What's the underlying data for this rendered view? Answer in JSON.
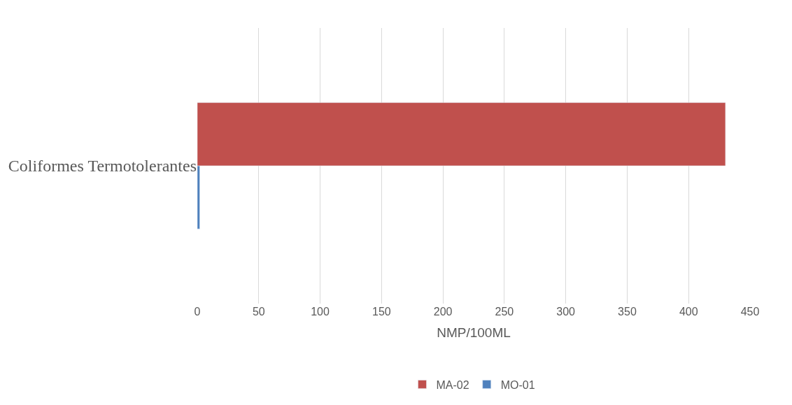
{
  "chart_data": {
    "type": "bar",
    "orientation": "horizontal",
    "categories": [
      "Coliformes Termotolerantes"
    ],
    "series": [
      {
        "name": "MA-02",
        "color": "#c0504d",
        "values": [
          430
        ]
      },
      {
        "name": "MO-01",
        "color": "#4f81bd",
        "values": [
          2
        ]
      }
    ],
    "xlabel": "NMP/100ML",
    "xlim": [
      0,
      450
    ],
    "xticks": [
      0,
      50,
      100,
      150,
      200,
      250,
      300,
      350,
      400,
      450
    ],
    "grid": "x",
    "legend": "bottom"
  }
}
